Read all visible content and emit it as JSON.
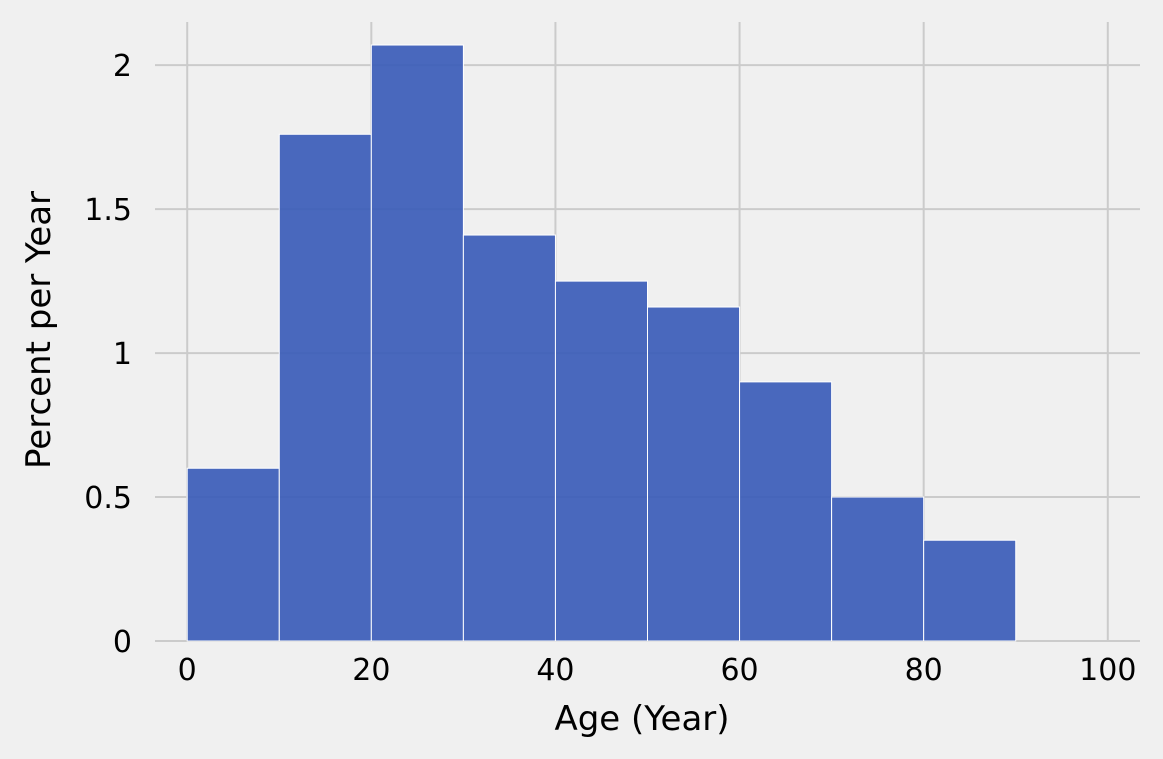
{
  "chart_data": {
    "type": "bar",
    "subtype": "histogram",
    "bins": [
      {
        "start": 0,
        "end": 10,
        "value": 0.6
      },
      {
        "start": 10,
        "end": 20,
        "value": 1.76
      },
      {
        "start": 20,
        "end": 30,
        "value": 2.07
      },
      {
        "start": 30,
        "end": 40,
        "value": 1.41
      },
      {
        "start": 40,
        "end": 50,
        "value": 1.25
      },
      {
        "start": 50,
        "end": 60,
        "value": 1.16
      },
      {
        "start": 60,
        "end": 70,
        "value": 0.9
      },
      {
        "start": 70,
        "end": 80,
        "value": 0.5
      },
      {
        "start": 80,
        "end": 90,
        "value": 0.35
      }
    ],
    "xlabel": "Age (Year)",
    "ylabel": "Percent per Year",
    "xlim": [
      -3.5,
      103.5
    ],
    "ylim": [
      0,
      2.15
    ],
    "xticks": [
      0,
      20,
      40,
      60,
      80,
      100
    ],
    "xtick_labels": [
      "0",
      "20",
      "40",
      "60",
      "80",
      "100"
    ],
    "yticks": [
      0,
      0.5,
      1,
      1.5,
      2
    ],
    "ytick_labels": [
      "0",
      "0.5",
      "1",
      "1.5",
      "2"
    ],
    "grid": true,
    "colors": {
      "bar": "#3b5cb9",
      "background": "#f0f0f0",
      "grid": "#cbcbcb"
    }
  }
}
